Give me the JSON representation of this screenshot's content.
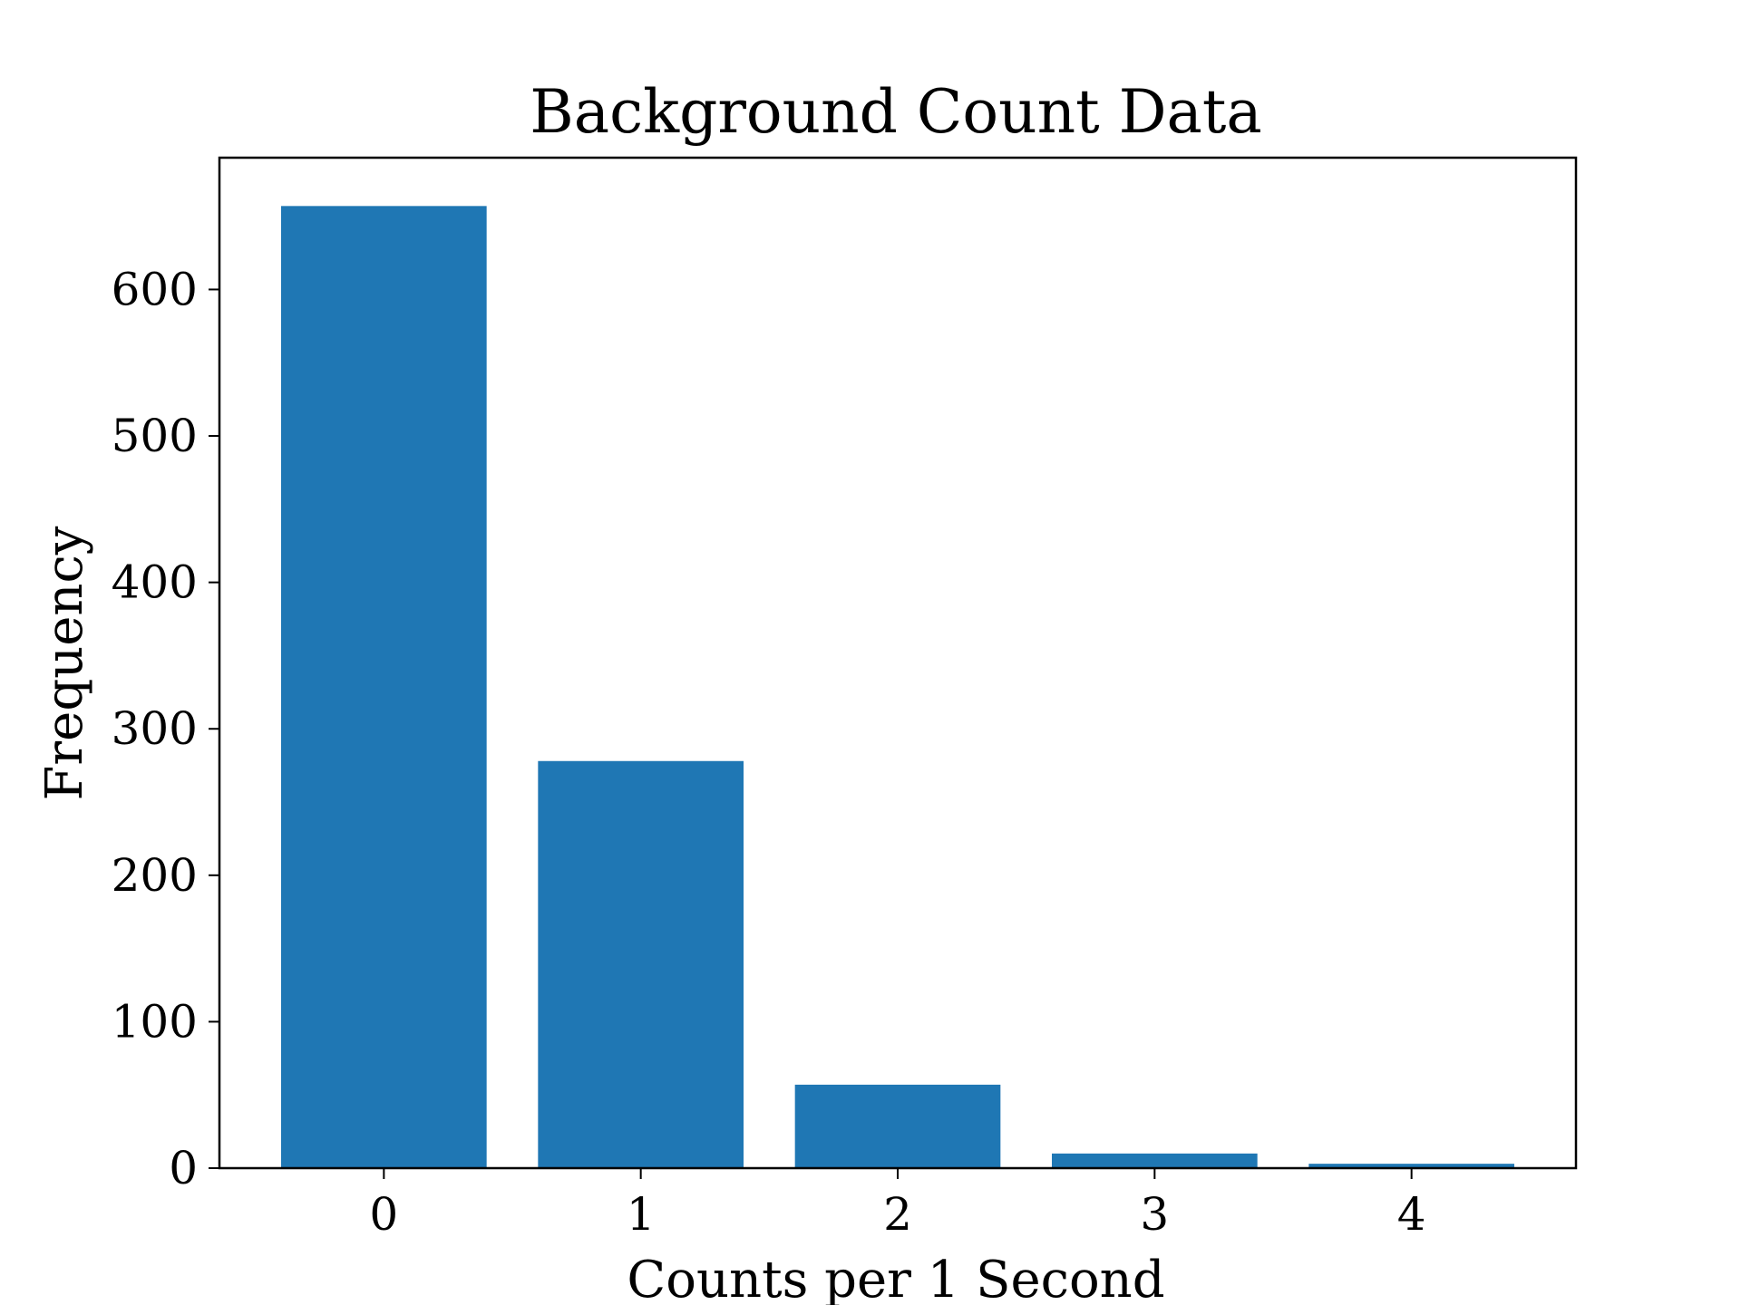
{
  "chart_data": {
    "type": "bar",
    "title": "Background Count Data",
    "xlabel": "Counts per 1 Second",
    "ylabel": "Frequency",
    "categories": [
      "0",
      "1",
      "2",
      "3",
      "4"
    ],
    "values": [
      657,
      278,
      57,
      10,
      3
    ],
    "ylim": [
      0,
      690
    ],
    "yticks": [
      0,
      100,
      200,
      300,
      400,
      500,
      600
    ],
    "grid": false,
    "colors": {
      "bar": "#1f77b4",
      "axes": "#000000",
      "background": "#ffffff"
    }
  }
}
